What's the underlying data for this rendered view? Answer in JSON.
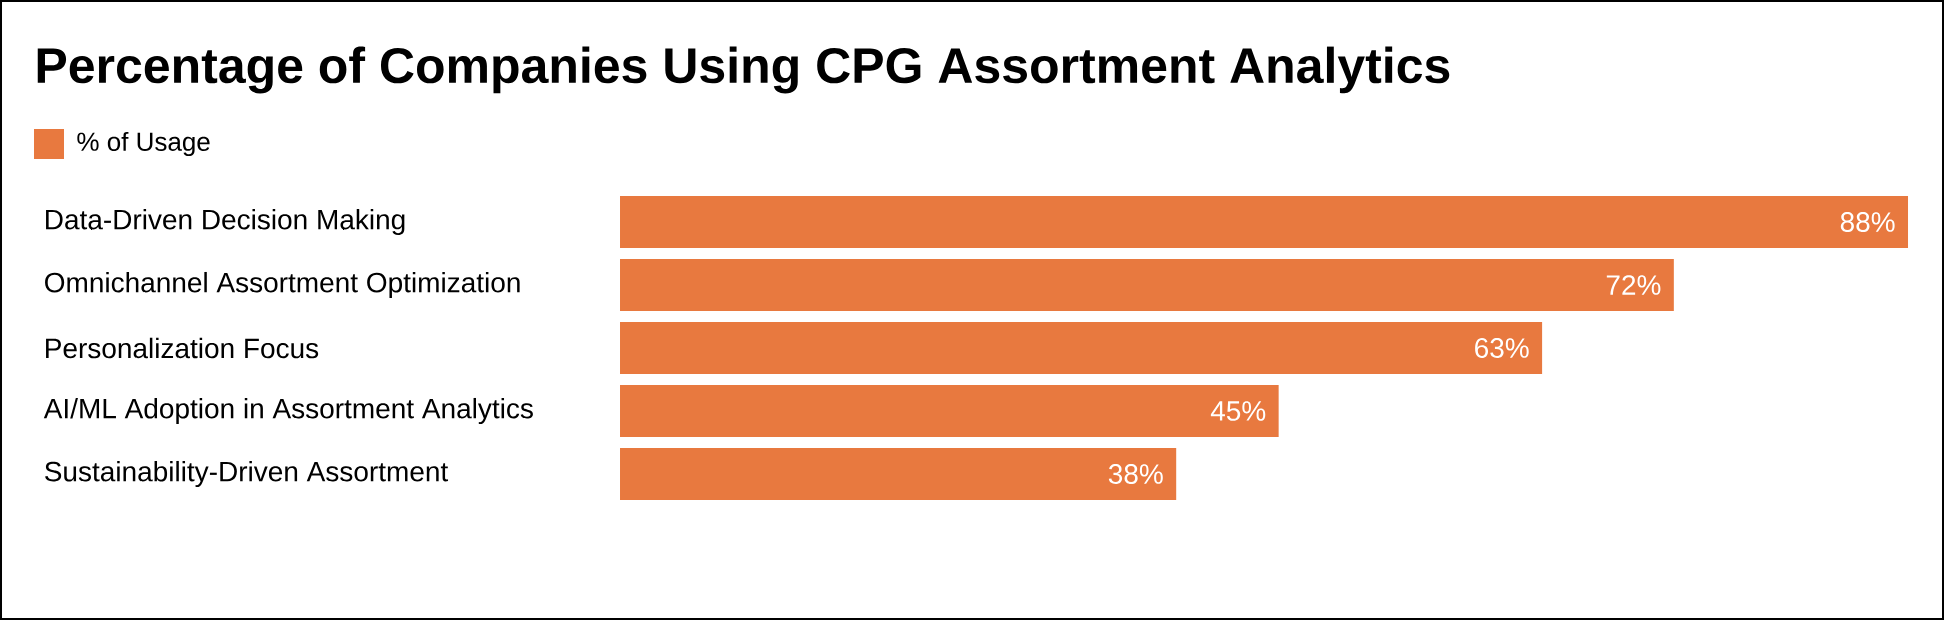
{
  "chart_data": {
    "type": "bar",
    "orientation": "horizontal",
    "title": "Percentage of Companies Using CPG Assortment Analytics",
    "categories": [
      "Data-Driven Decision Making",
      "Omnichannel Assortment Optimization",
      "Personalization Focus",
      "AI/ML Adoption in Assortment Analytics",
      "Sustainability-Driven Assortment"
    ],
    "series": [
      {
        "name": "% of Usage",
        "color": "#e8793f",
        "values": [
          88,
          72,
          63,
          45,
          38
        ],
        "value_labels": [
          "88%",
          "72%",
          "63%",
          "45%",
          "38%"
        ]
      }
    ],
    "legend": "top left"
  }
}
